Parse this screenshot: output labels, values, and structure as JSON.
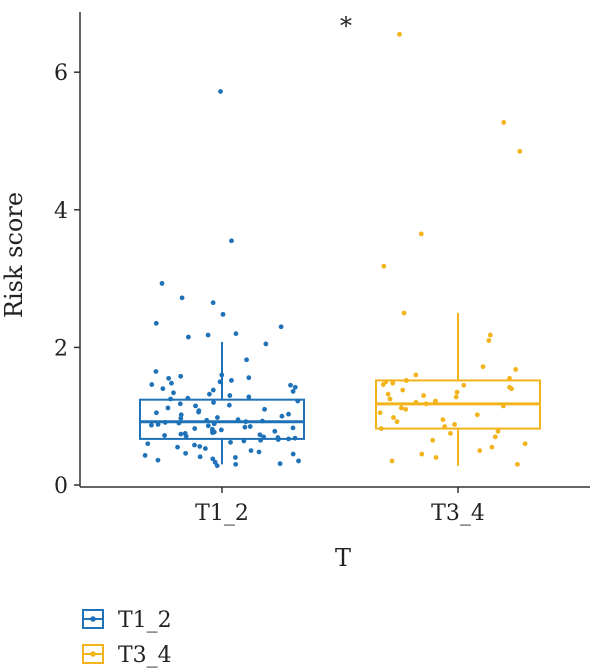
{
  "chart_data": {
    "type": "box",
    "xlabel": "T",
    "ylabel": "Risk score",
    "ylim": [
      0,
      6.9
    ],
    "yticks": [
      0,
      2,
      4,
      6
    ],
    "categories": [
      "T1_2",
      "T3_4"
    ],
    "significance": "*",
    "legend_position": "bottom-left",
    "grid": false,
    "series": [
      {
        "name": "T1_2",
        "color": "#1f72b8",
        "box": {
          "lower_whisker": 0.3,
          "q1": 0.67,
          "median": 0.92,
          "q3": 1.24,
          "upper_whisker": 2.08
        },
        "points": [
          5.72,
          3.55,
          2.93,
          2.72,
          2.65,
          2.48,
          2.35,
          2.3,
          2.2,
          2.18,
          2.15,
          2.05,
          1.82,
          1.65,
          1.6,
          1.58,
          1.56,
          1.55,
          1.52,
          1.5,
          1.48,
          1.46,
          1.45,
          1.42,
          1.4,
          1.38,
          1.36,
          1.34,
          1.32,
          1.3,
          1.28,
          1.26,
          1.25,
          1.22,
          1.2,
          1.18,
          1.16,
          1.15,
          1.12,
          1.1,
          1.08,
          1.06,
          1.05,
          1.03,
          1.02,
          1.0,
          0.98,
          0.97,
          0.95,
          0.94,
          0.93,
          0.92,
          0.91,
          0.9,
          0.89,
          0.88,
          0.87,
          0.86,
          0.85,
          0.84,
          0.83,
          0.82,
          0.81,
          0.8,
          0.79,
          0.78,
          0.77,
          0.76,
          0.75,
          0.74,
          0.73,
          0.72,
          0.71,
          0.7,
          0.69,
          0.68,
          0.67,
          0.66,
          0.65,
          0.64,
          0.62,
          0.6,
          0.58,
          0.56,
          0.55,
          0.53,
          0.5,
          0.48,
          0.46,
          0.45,
          0.43,
          0.41,
          0.4,
          0.38,
          0.36,
          0.35,
          0.33,
          0.31,
          0.3,
          0.28
        ]
      },
      {
        "name": "T3_4",
        "color": "#f2b31b",
        "box": {
          "lower_whisker": 0.28,
          "q1": 0.82,
          "median": 1.18,
          "q3": 1.52,
          "upper_whisker": 2.5
        },
        "points": [
          6.55,
          5.27,
          4.85,
          3.65,
          3.18,
          2.5,
          2.18,
          2.1,
          1.72,
          1.68,
          1.6,
          1.55,
          1.52,
          1.5,
          1.48,
          1.46,
          1.45,
          1.42,
          1.4,
          1.38,
          1.35,
          1.32,
          1.3,
          1.28,
          1.25,
          1.22,
          1.2,
          1.18,
          1.15,
          1.12,
          1.1,
          1.05,
          1.02,
          0.98,
          0.95,
          0.92,
          0.88,
          0.85,
          0.82,
          0.78,
          0.75,
          0.7,
          0.65,
          0.6,
          0.55,
          0.5,
          0.45,
          0.4,
          0.35,
          0.3
        ]
      }
    ]
  }
}
